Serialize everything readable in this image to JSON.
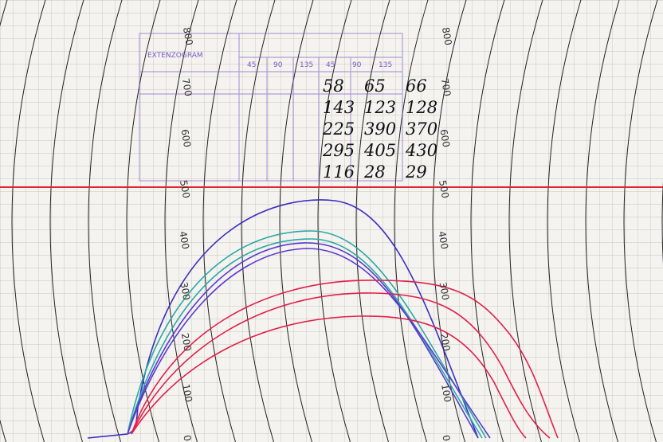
{
  "stamp": {
    "title": "EXTENZOGRAM",
    "columns": [
      "45",
      "90",
      "135",
      "45",
      "90",
      "135"
    ]
  },
  "scales": [
    {
      "labels": [
        "800",
        "700",
        "600",
        "500",
        "400",
        "300",
        "200",
        "100",
        "0"
      ]
    },
    {
      "labels": [
        "800",
        "700",
        "600",
        "500",
        "400",
        "300",
        "200",
        "100",
        "0"
      ]
    }
  ],
  "notes": {
    "rows": [
      [
        "58",
        "65",
        "66"
      ],
      [
        "143",
        "123",
        "128"
      ],
      [
        "225",
        "390",
        "370"
      ],
      [
        "295",
        "405",
        "430"
      ],
      [
        "116",
        "28",
        "29"
      ]
    ]
  }
}
